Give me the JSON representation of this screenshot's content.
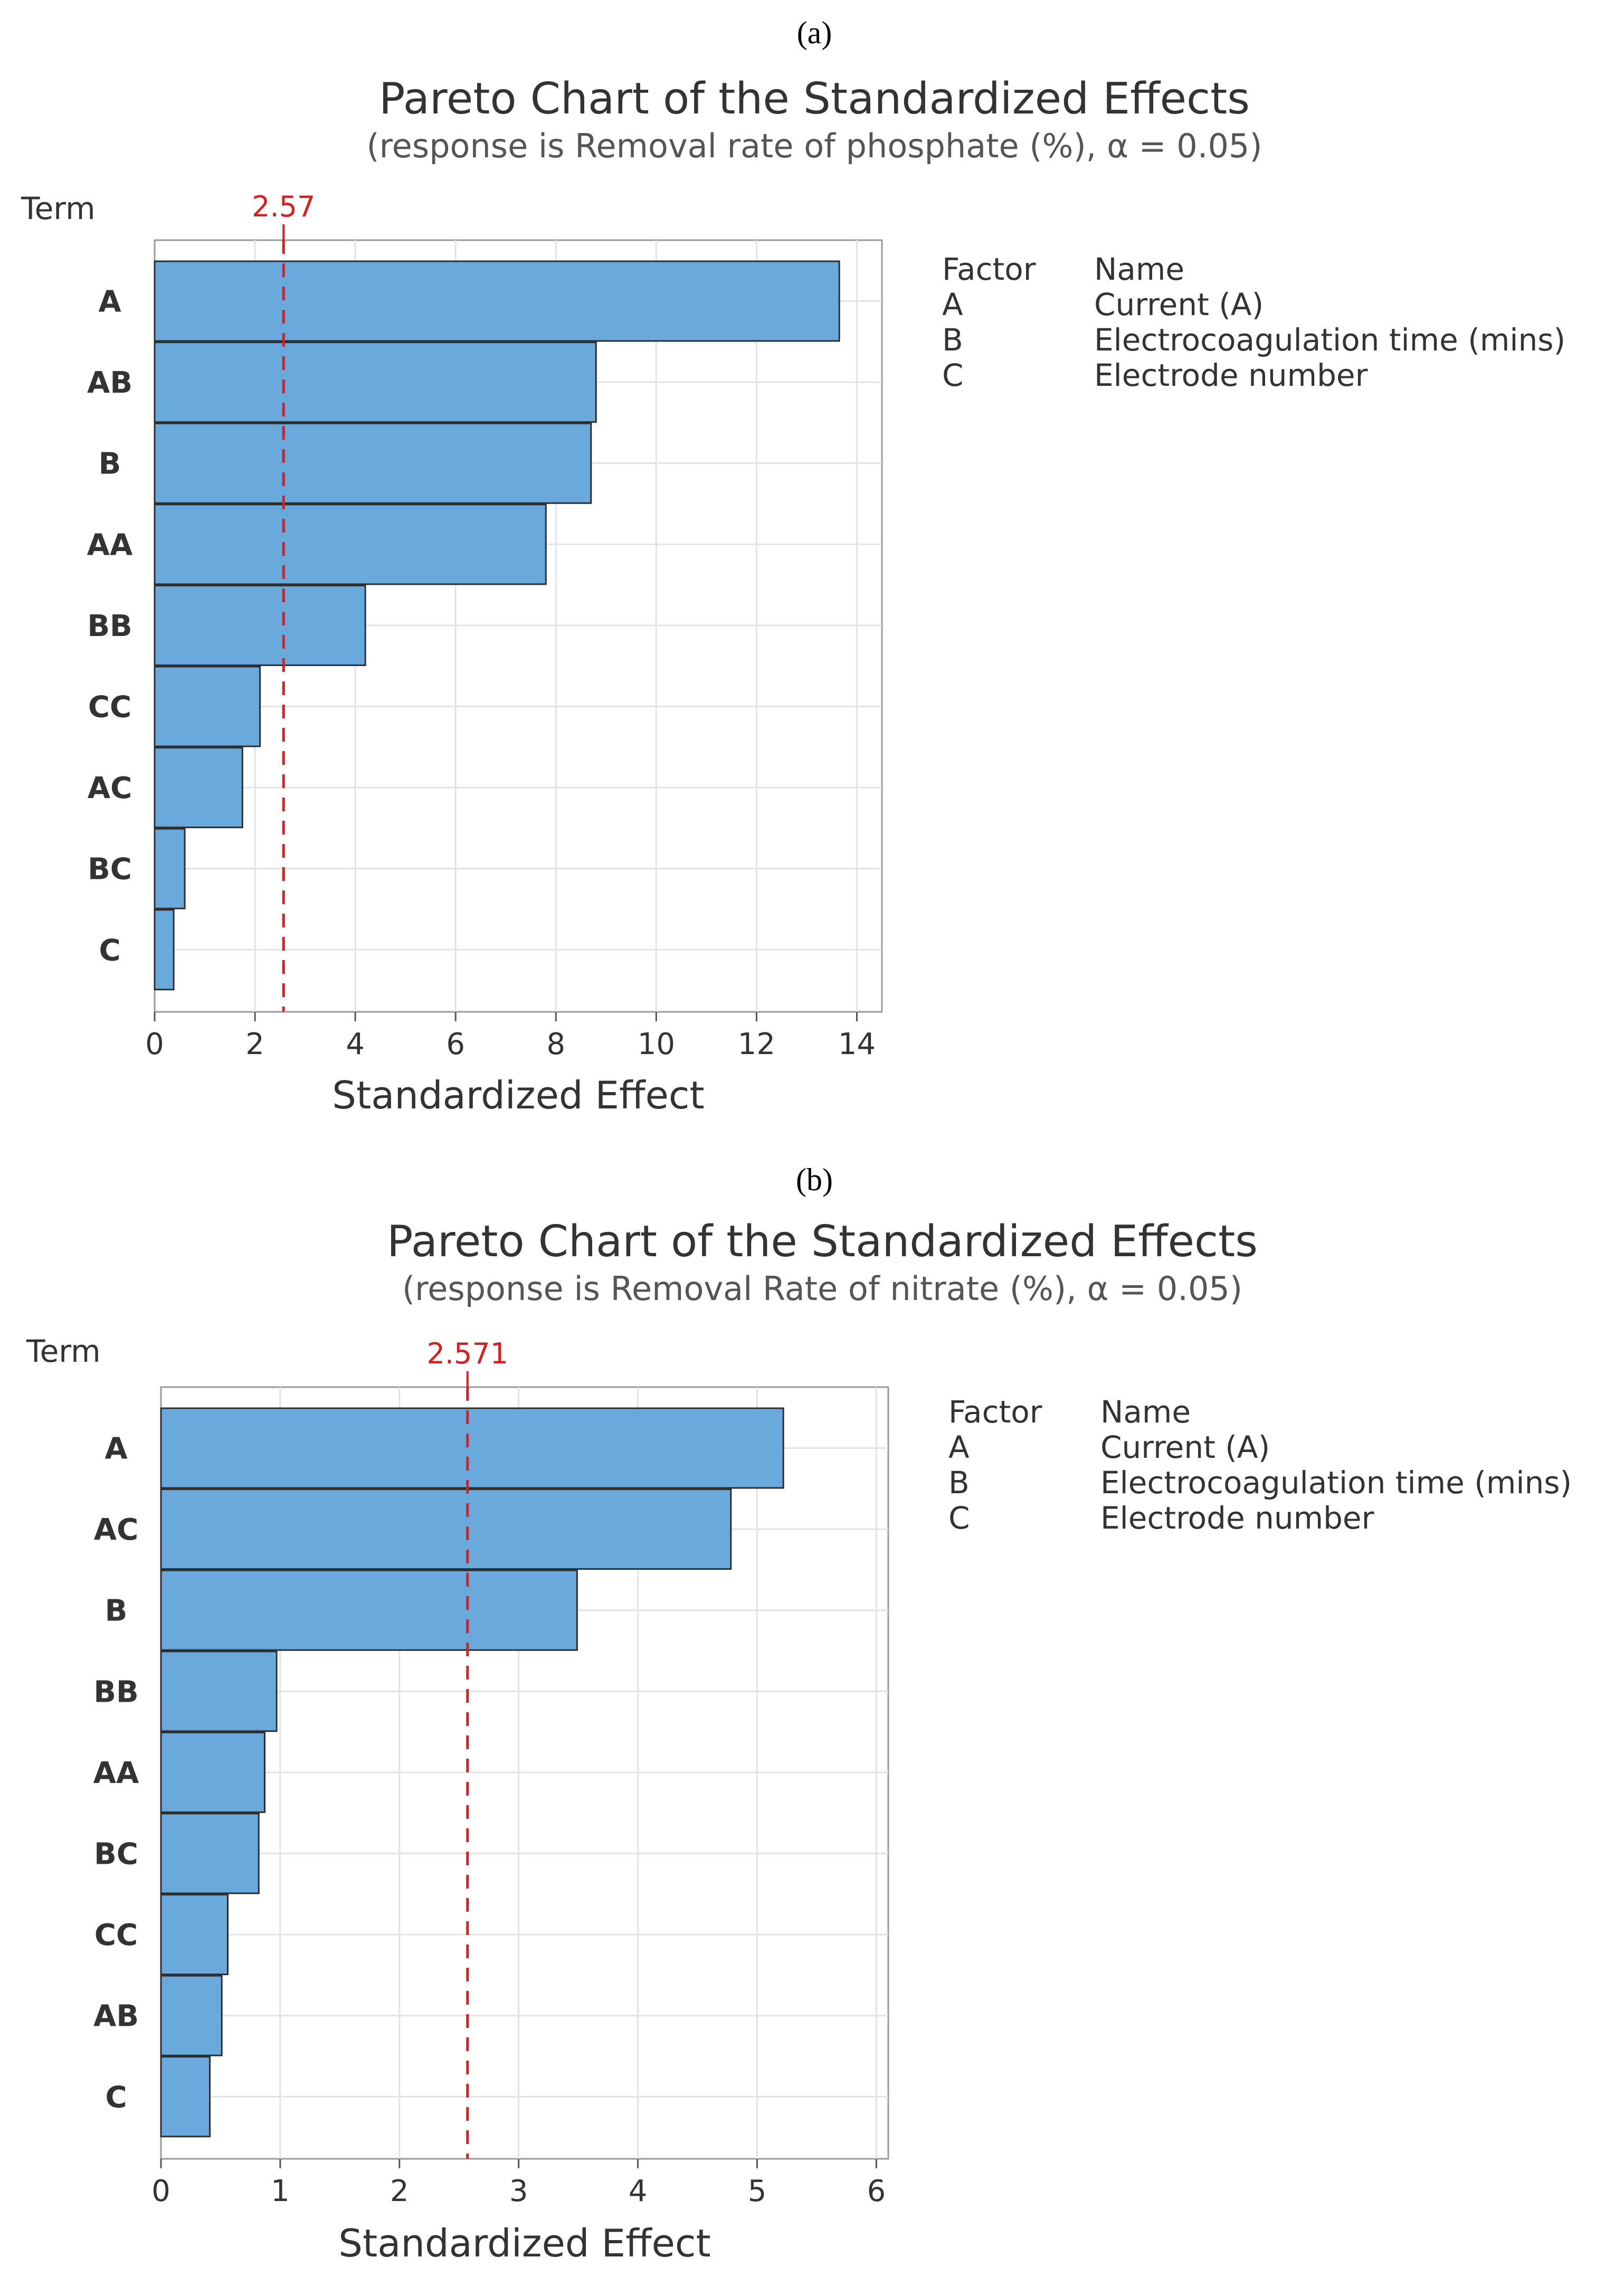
{
  "colors": {
    "bar_fill": "#69a9dc",
    "bar_stroke": "#2e2e2e",
    "ref_line": "#d71f1f",
    "grid": "#e3e3e3",
    "text": "#333333",
    "subtitle": "#555555"
  },
  "chart_data": [
    {
      "type": "bar",
      "orientation": "horizontal",
      "panel_label": "(a)",
      "title": "Pareto Chart of the Standardized Effects",
      "subtitle": "(response is Removal rate of phosphate (%), α = 0.05)",
      "ylabel": "Term",
      "xlabel": "Standardized Effect",
      "categories": [
        "A",
        "AB",
        "B",
        "AA",
        "BB",
        "CC",
        "AC",
        "BC",
        "C"
      ],
      "values": [
        13.65,
        8.8,
        8.7,
        7.8,
        4.2,
        2.1,
        1.75,
        0.6,
        0.38
      ],
      "xlim": [
        0,
        14.5
      ],
      "xticks": [
        0,
        2,
        4,
        6,
        8,
        10,
        12,
        14
      ],
      "reference_line": {
        "value": 2.57,
        "label": "2.57"
      },
      "grid": true,
      "legend": {
        "header_factor": "Factor",
        "header_name": "Name",
        "rows": [
          {
            "factor": "A",
            "name": "Current (A)"
          },
          {
            "factor": "B",
            "name": "Electrocoagulation time (mins)"
          },
          {
            "factor": "C",
            "name": "Electrode number"
          }
        ]
      }
    },
    {
      "type": "bar",
      "orientation": "horizontal",
      "panel_label": "(b)",
      "title": "Pareto Chart of the Standardized Effects",
      "subtitle": "(response is Removal Rate of nitrate (%), α = 0.05)",
      "ylabel": "Term",
      "xlabel": "Standardized Effect",
      "categories": [
        "A",
        "AC",
        "B",
        "BB",
        "AA",
        "BC",
        "CC",
        "AB",
        "C"
      ],
      "values": [
        5.22,
        4.78,
        3.49,
        0.97,
        0.87,
        0.82,
        0.56,
        0.51,
        0.41
      ],
      "xlim": [
        0,
        6.1
      ],
      "xticks": [
        0,
        1,
        2,
        3,
        4,
        5,
        6
      ],
      "reference_line": {
        "value": 2.571,
        "label": "2.571"
      },
      "grid": true,
      "legend": {
        "header_factor": "Factor",
        "header_name": "Name",
        "rows": [
          {
            "factor": "A",
            "name": "Current (A)"
          },
          {
            "factor": "B",
            "name": "Electrocoagulation time (mins)"
          },
          {
            "factor": "C",
            "name": "Electrode number"
          }
        ]
      }
    }
  ]
}
